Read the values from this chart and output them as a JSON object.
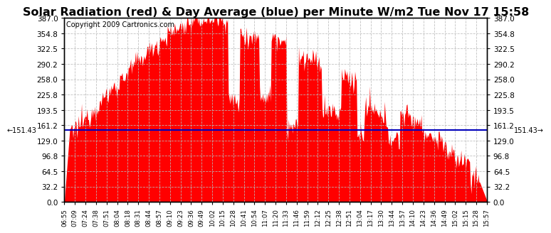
{
  "title": "Solar Radiation (red) & Day Average (blue) per Minute W/m2 Tue Nov 17 15:58",
  "copyright": "Copyright 2009 Cartronics.com",
  "avg_value": 151.43,
  "ylim": [
    0,
    387.0
  ],
  "yticks": [
    0.0,
    32.2,
    64.5,
    96.8,
    129.0,
    161.2,
    193.5,
    225.8,
    258.0,
    290.2,
    322.5,
    354.8,
    387.0
  ],
  "fill_color": "#FF0000",
  "line_color": "#0000BB",
  "bg_color": "#FFFFFF",
  "grid_color": "#BBBBBB",
  "title_fontsize": 11.5,
  "copyright_fontsize": 7,
  "xtick_labels": [
    "06:55",
    "07:09",
    "07:24",
    "07:38",
    "07:51",
    "08:04",
    "08:18",
    "08:31",
    "08:44",
    "08:57",
    "09:10",
    "09:23",
    "09:36",
    "09:49",
    "10:02",
    "10:15",
    "10:28",
    "10:41",
    "10:54",
    "11:07",
    "11:20",
    "11:33",
    "11:46",
    "11:59",
    "12:12",
    "12:25",
    "12:38",
    "12:51",
    "13:04",
    "13:17",
    "13:30",
    "13:44",
    "13:57",
    "14:10",
    "14:23",
    "14:36",
    "14:49",
    "15:02",
    "15:15",
    "15:28",
    "15:57"
  ]
}
